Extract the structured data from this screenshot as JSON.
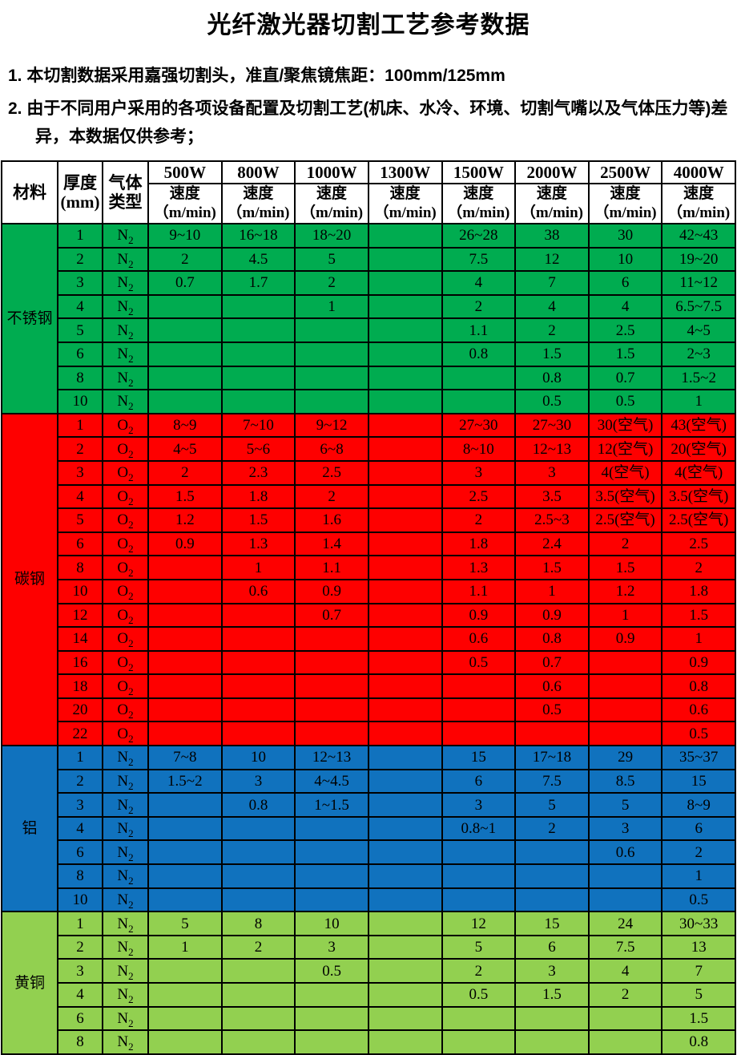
{
  "title": "光纤激光器切割工艺参考数据",
  "notes": [
    "1. 本切割数据采用嘉强切割头，准直/聚焦镜焦距：100mm/125mm",
    "2. 由于不同用户采用的各项设备配置及切割工艺(机床、水冷、环境、切割气嘴以及气体压力等)差异，本数据仅供参考；"
  ],
  "table": {
    "headers": {
      "material": "材料",
      "thickness_line1": "厚度",
      "thickness_line2": "(mm)",
      "gas_line1": "气体",
      "gas_line2": "类型",
      "power_columns": [
        "500W",
        "800W",
        "1000W",
        "1300W",
        "1500W",
        "2000W",
        "2500W",
        "4000W"
      ],
      "speed_label": "速度",
      "speed_unit": "（m/min)"
    },
    "sections": [
      {
        "material": "不锈钢",
        "color": "#00AC50",
        "rows": [
          {
            "thickness": "1",
            "gas": "N2",
            "speeds": [
              "9~10",
              "16~18",
              "18~20",
              "",
              "26~28",
              "38",
              "30",
              "42~43"
            ]
          },
          {
            "thickness": "2",
            "gas": "N2",
            "speeds": [
              "2",
              "4.5",
              "5",
              "",
              "7.5",
              "12",
              "10",
              "19~20"
            ]
          },
          {
            "thickness": "3",
            "gas": "N2",
            "speeds": [
              "0.7",
              "1.7",
              "2",
              "",
              "4",
              "7",
              "6",
              "11~12"
            ]
          },
          {
            "thickness": "4",
            "gas": "N2",
            "speeds": [
              "",
              "",
              "1",
              "",
              "2",
              "4",
              "4",
              "6.5~7.5"
            ]
          },
          {
            "thickness": "5",
            "gas": "N2",
            "speeds": [
              "",
              "",
              "",
              "",
              "1.1",
              "2",
              "2.5",
              "4~5"
            ]
          },
          {
            "thickness": "6",
            "gas": "N2",
            "speeds": [
              "",
              "",
              "",
              "",
              "0.8",
              "1.5",
              "1.5",
              "2~3"
            ]
          },
          {
            "thickness": "8",
            "gas": "N2",
            "speeds": [
              "",
              "",
              "",
              "",
              "",
              "0.8",
              "0.7",
              "1.5~2"
            ]
          },
          {
            "thickness": "10",
            "gas": "N2",
            "speeds": [
              "",
              "",
              "",
              "",
              "",
              "0.5",
              "0.5",
              "1"
            ]
          }
        ]
      },
      {
        "material": "碳钢",
        "color": "#FE0000",
        "rows": [
          {
            "thickness": "1",
            "gas": "O2",
            "speeds": [
              "8~9",
              "7~10",
              "9~12",
              "",
              "27~30",
              "27~30",
              "30(空气)",
              "43(空气)"
            ]
          },
          {
            "thickness": "2",
            "gas": "O2",
            "speeds": [
              "4~5",
              "5~6",
              "6~8",
              "",
              "8~10",
              "12~13",
              "12(空气)",
              "20(空气)"
            ]
          },
          {
            "thickness": "3",
            "gas": "O2",
            "speeds": [
              "2",
              "2.3",
              "2.5",
              "",
              "3",
              "3",
              "4(空气)",
              "4(空气)"
            ]
          },
          {
            "thickness": "4",
            "gas": "O2",
            "speeds": [
              "1.5",
              "1.8",
              "2",
              "",
              "2.5",
              "3.5",
              "3.5(空气)",
              "3.5(空气)"
            ]
          },
          {
            "thickness": "5",
            "gas": "O2",
            "speeds": [
              "1.2",
              "1.5",
              "1.6",
              "",
              "2",
              "2.5~3",
              "2.5(空气)",
              "2.5(空气)"
            ]
          },
          {
            "thickness": "6",
            "gas": "O2",
            "speeds": [
              "0.9",
              "1.3",
              "1.4",
              "",
              "1.8",
              "2.4",
              "2",
              "2.5"
            ]
          },
          {
            "thickness": "8",
            "gas": "O2",
            "speeds": [
              "",
              "1",
              "1.1",
              "",
              "1.3",
              "1.5",
              "1.5",
              "2"
            ]
          },
          {
            "thickness": "10",
            "gas": "O2",
            "speeds": [
              "",
              "0.6",
              "0.9",
              "",
              "1.1",
              "1",
              "1.2",
              "1.8"
            ]
          },
          {
            "thickness": "12",
            "gas": "O2",
            "speeds": [
              "",
              "",
              "0.7",
              "",
              "0.9",
              "0.9",
              "1",
              "1.5"
            ]
          },
          {
            "thickness": "14",
            "gas": "O2",
            "speeds": [
              "",
              "",
              "",
              "",
              "0.6",
              "0.8",
              "0.9",
              "1"
            ]
          },
          {
            "thickness": "16",
            "gas": "O2",
            "speeds": [
              "",
              "",
              "",
              "",
              "0.5",
              "0.7",
              "",
              "0.9"
            ]
          },
          {
            "thickness": "18",
            "gas": "O2",
            "speeds": [
              "",
              "",
              "",
              "",
              "",
              "0.6",
              "",
              "0.8"
            ]
          },
          {
            "thickness": "20",
            "gas": "O2",
            "speeds": [
              "",
              "",
              "",
              "",
              "",
              "0.5",
              "",
              "0.6"
            ]
          },
          {
            "thickness": "22",
            "gas": "O2",
            "speeds": [
              "",
              "",
              "",
              "",
              "",
              "",
              "",
              "0.5"
            ]
          }
        ]
      },
      {
        "material": "铝",
        "color": "#1072BE",
        "rows": [
          {
            "thickness": "1",
            "gas": "N2",
            "speeds": [
              "7~8",
              "10",
              "12~13",
              "",
              "15",
              "17~18",
              "29",
              "35~37"
            ]
          },
          {
            "thickness": "2",
            "gas": "N2",
            "speeds": [
              "1.5~2",
              "3",
              "4~4.5",
              "",
              "6",
              "7.5",
              "8.5",
              "15"
            ]
          },
          {
            "thickness": "3",
            "gas": "N2",
            "speeds": [
              "",
              "0.8",
              "1~1.5",
              "",
              "3",
              "5",
              "5",
              "8~9"
            ]
          },
          {
            "thickness": "4",
            "gas": "N2",
            "speeds": [
              "",
              "",
              "",
              "",
              "0.8~1",
              "2",
              "3",
              "6"
            ]
          },
          {
            "thickness": "6",
            "gas": "N2",
            "speeds": [
              "",
              "",
              "",
              "",
              "",
              "",
              "0.6",
              "2"
            ]
          },
          {
            "thickness": "8",
            "gas": "N2",
            "speeds": [
              "",
              "",
              "",
              "",
              "",
              "",
              "",
              "1"
            ]
          },
          {
            "thickness": "10",
            "gas": "N2",
            "speeds": [
              "",
              "",
              "",
              "",
              "",
              "",
              "",
              "0.5"
            ]
          }
        ]
      },
      {
        "material": "黄铜",
        "color": "#92D050",
        "rows": [
          {
            "thickness": "1",
            "gas": "N2",
            "speeds": [
              "5",
              "8",
              "10",
              "",
              "12",
              "15",
              "24",
              "30~33"
            ]
          },
          {
            "thickness": "2",
            "gas": "N2",
            "speeds": [
              "1",
              "2",
              "3",
              "",
              "5",
              "6",
              "7.5",
              "13"
            ]
          },
          {
            "thickness": "3",
            "gas": "N2",
            "speeds": [
              "",
              "",
              "0.5",
              "",
              "2",
              "3",
              "4",
              "7"
            ]
          },
          {
            "thickness": "4",
            "gas": "N2",
            "speeds": [
              "",
              "",
              "",
              "",
              "0.5",
              "1.5",
              "2",
              "5"
            ]
          },
          {
            "thickness": "6",
            "gas": "N2",
            "speeds": [
              "",
              "",
              "",
              "",
              "",
              "",
              "",
              "1.5"
            ]
          },
          {
            "thickness": "8",
            "gas": "N2",
            "speeds": [
              "",
              "",
              "",
              "",
              "",
              "",
              "",
              "0.8"
            ]
          }
        ]
      }
    ]
  }
}
